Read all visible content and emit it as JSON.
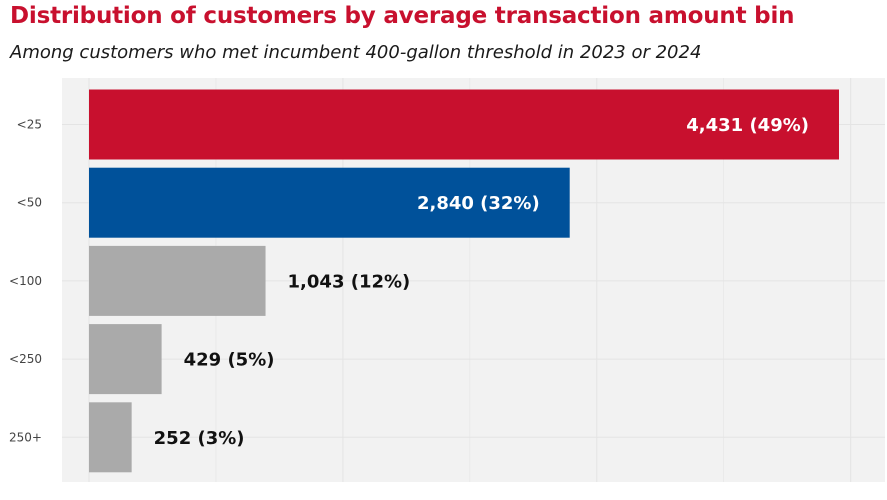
{
  "title": "Distribution of customers by average transaction amount bin",
  "subtitle": "Among customers who met incumbent 400-gallon threshold in 2023 or 2024",
  "colors": {
    "highlight_1": "#c8102e",
    "highlight_2": "#00519a",
    "default_bar": "#aaaaaa",
    "panel_background": "#f2f2f2",
    "gridline": "#e4e4e4"
  },
  "chart_data": {
    "type": "bar",
    "orientation": "horizontal",
    "categories": [
      "<25",
      "<50",
      "<100",
      "<250",
      "250+"
    ],
    "values": [
      4431,
      2840,
      1043,
      429,
      252
    ],
    "labels": [
      "4,431 (49%)",
      "2,840 (32%)",
      "1,043 (12%)",
      "429 (5%)",
      "252 (3%)"
    ],
    "bar_colors": [
      "#c8102e",
      "#00519a",
      "#aaaaaa",
      "#aaaaaa",
      "#aaaaaa"
    ],
    "label_position": [
      "inside",
      "inside",
      "outside",
      "outside",
      "outside"
    ],
    "xlim": [
      0,
      4652
    ],
    "x_gridlines": [
      0,
      1500,
      3000,
      4500
    ],
    "x_tick_labels_shown": false,
    "grid": true,
    "xlabel": "",
    "ylabel": ""
  }
}
